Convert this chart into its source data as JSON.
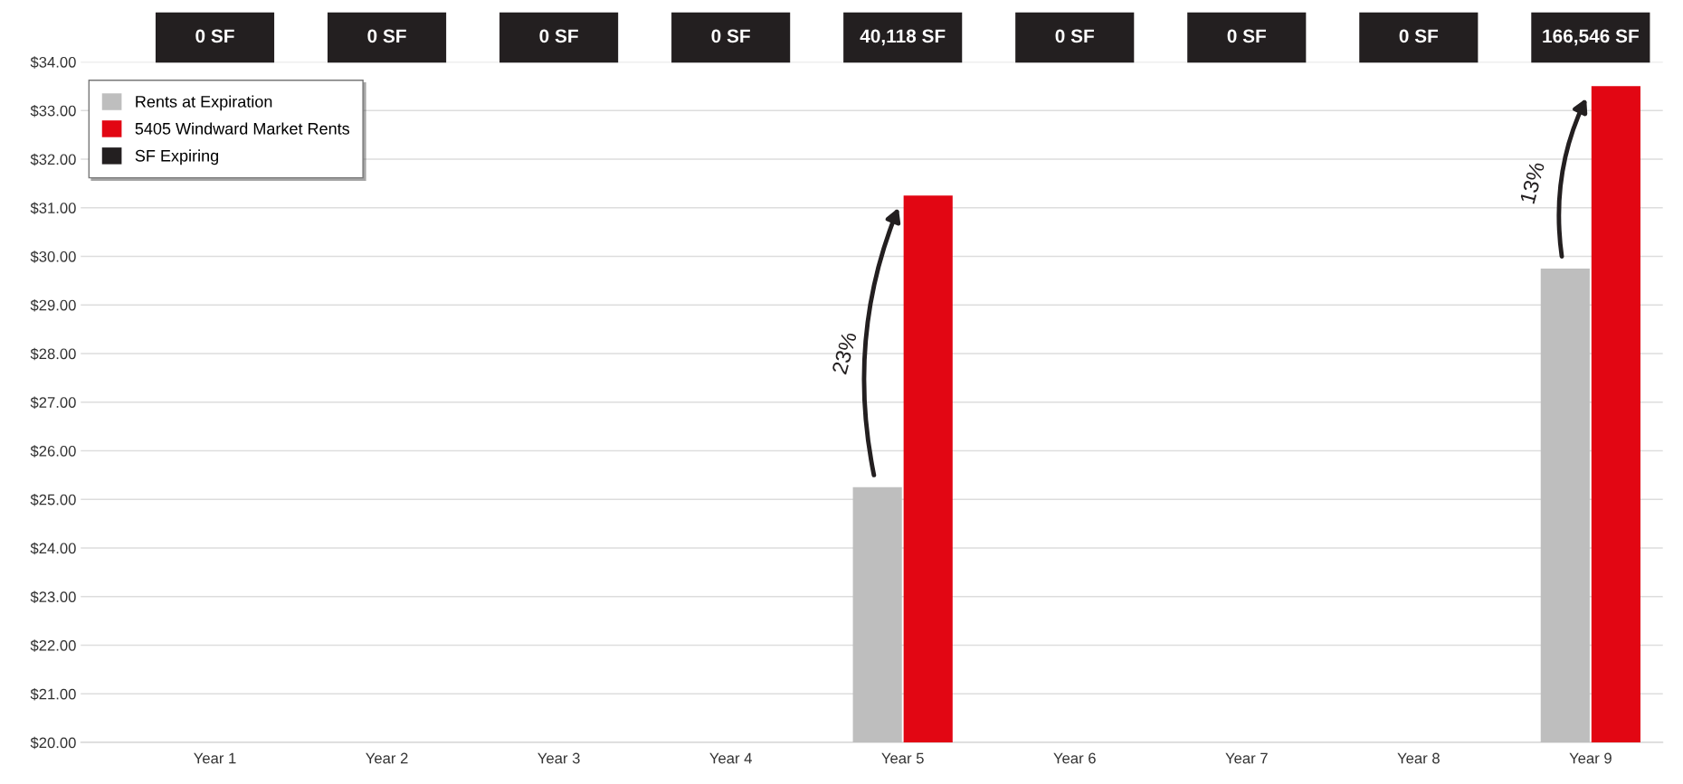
{
  "chart_data": {
    "type": "bar",
    "categories": [
      "Year 1",
      "Year 2",
      "Year 3",
      "Year 4",
      "Year 5",
      "Year 6",
      "Year 7",
      "Year 8",
      "Year 9"
    ],
    "series": [
      {
        "name": "Rents at Expiration",
        "color": "#bebebe",
        "values": [
          null,
          null,
          null,
          null,
          25.25,
          null,
          null,
          null,
          29.75
        ]
      },
      {
        "name": "5405 Windward Market Rents",
        "color": "#e20613",
        "values": [
          null,
          null,
          null,
          null,
          31.25,
          null,
          null,
          null,
          33.5
        ]
      },
      {
        "name": "SF Expiring",
        "color": "#231f20",
        "type": "other",
        "values": [
          null,
          null,
          null,
          null,
          null,
          null,
          null,
          null,
          null
        ]
      }
    ],
    "ylim": [
      20,
      34
    ],
    "yticks": [
      {
        "value": 20,
        "label": "$20.00"
      },
      {
        "value": 21,
        "label": "$21.00"
      },
      {
        "value": 22,
        "label": "$22.00"
      },
      {
        "value": 23,
        "label": "$23.00"
      },
      {
        "value": 24,
        "label": "$24.00"
      },
      {
        "value": 25,
        "label": "$25.00"
      },
      {
        "value": 26,
        "label": "$26.00"
      },
      {
        "value": 27,
        "label": "$27.00"
      },
      {
        "value": 28,
        "label": "$28.00"
      },
      {
        "value": 29,
        "label": "$29.00"
      },
      {
        "value": 30,
        "label": "$30.00"
      },
      {
        "value": 31,
        "label": "$31.00"
      },
      {
        "value": 32,
        "label": "$32.00"
      },
      {
        "value": 33,
        "label": "$33.00"
      },
      {
        "value": 34,
        "label": "$34.00"
      }
    ],
    "annotations": [
      {
        "text": "23%",
        "x": "Year 5",
        "y": 28
      },
      {
        "text": "13%",
        "x": "Year 9",
        "y": 31.5
      },
      "0 SF",
      "0 SF",
      "0 SF",
      "0 SF",
      "40,118 SF",
      "0 SF",
      "0 SF",
      "0 SF",
      "166,546 SF"
    ],
    "grid": "y",
    "legend": "top left"
  }
}
